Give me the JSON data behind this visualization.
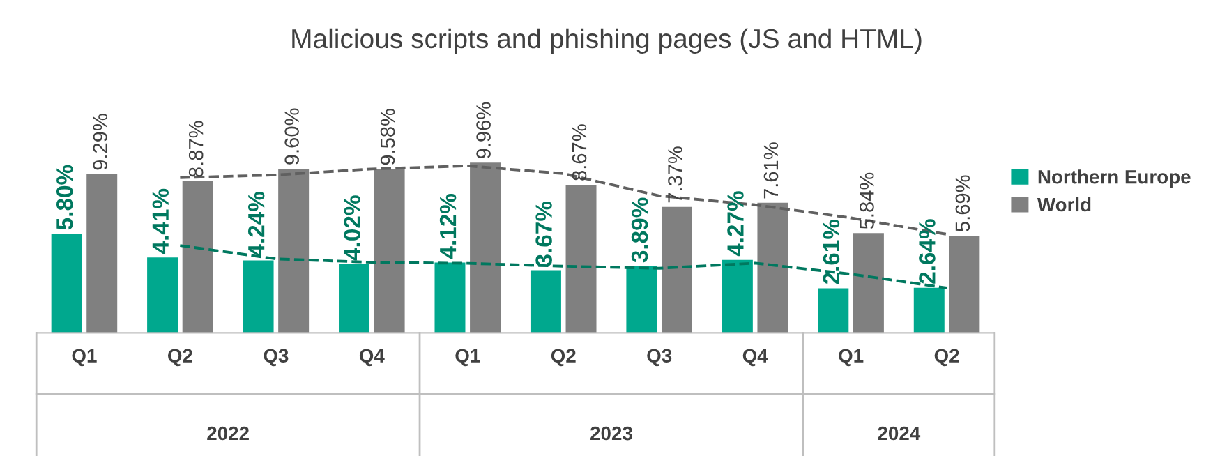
{
  "chart_data": {
    "type": "bar",
    "title": "Malicious scripts and phishing pages (JS and HTML)",
    "categories": [
      "Q1",
      "Q2",
      "Q3",
      "Q4",
      "Q1",
      "Q2",
      "Q3",
      "Q4",
      "Q1",
      "Q2"
    ],
    "annotations": [
      "2022",
      "2023",
      "2024"
    ],
    "series": [
      {
        "name": "Northern Europe",
        "color": "#00a88e",
        "values": [
          5.8,
          4.41,
          4.24,
          4.02,
          4.12,
          3.67,
          3.89,
          4.27,
          2.61,
          2.64
        ],
        "value_labels": [
          "5.80%",
          "4.41%",
          "4.24%",
          "4.02%",
          "4.12%",
          "3.67%",
          "3.89%",
          "4.27%",
          "2.61%",
          "2.64%"
        ]
      },
      {
        "name": "World",
        "color": "#808080",
        "values": [
          9.29,
          8.87,
          9.6,
          9.58,
          9.96,
          8.67,
          7.37,
          7.61,
          5.84,
          5.69
        ],
        "value_labels": [
          "9.29%",
          "8.87%",
          "9.60%",
          "9.58%",
          "9.96%",
          "8.67%",
          "7.37%",
          "7.61%",
          "5.84%",
          "5.69%"
        ]
      },
      {
        "type": "line",
        "color": "#00785f",
        "line_style": "dashed",
        "values": [
          null,
          5.11,
          4.33,
          4.13,
          4.07,
          3.9,
          3.78,
          4.08,
          3.44,
          2.63
        ]
      },
      {
        "type": "line",
        "color": "#606060",
        "line_style": "dashed",
        "values": [
          null,
          9.08,
          9.24,
          9.59,
          9.77,
          9.32,
          8.02,
          7.49,
          6.73,
          5.77
        ]
      }
    ],
    "legend": "right",
    "grid": false
  }
}
